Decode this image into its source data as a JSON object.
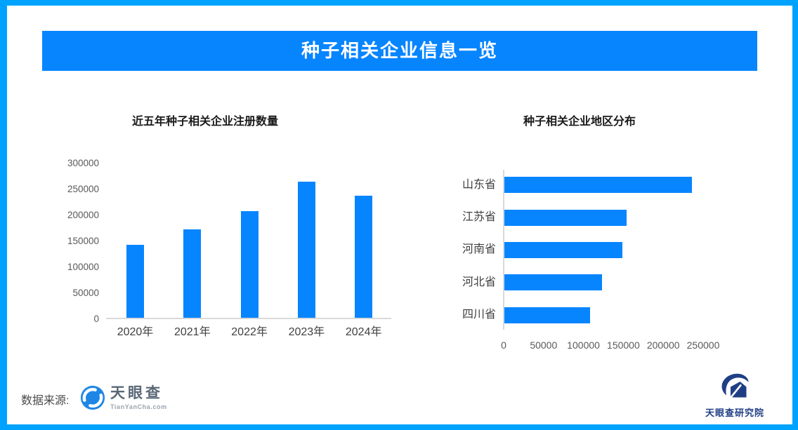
{
  "banner": {
    "title": "种子相关企业信息一览"
  },
  "colors": {
    "brand_blue": "#0685FF",
    "frame_border": "#00A2FF",
    "axis_line": "#D9D9D9",
    "tick_text": "#595959",
    "tianyancha_blue": "#1E87E5",
    "research_navy": "#1F3F85"
  },
  "chart_data": [
    {
      "type": "bar",
      "orientation": "vertical",
      "title": "近五年种子相关企业注册数量",
      "categories": [
        "2020年",
        "2021年",
        "2022年",
        "2023年",
        "2024年"
      ],
      "values": [
        140000,
        170000,
        205000,
        262000,
        235000
      ],
      "xlabel": "",
      "ylabel": "",
      "ylim": [
        0,
        300000
      ],
      "yticks": [
        0,
        50000,
        100000,
        150000,
        200000,
        250000,
        300000
      ],
      "grid": false,
      "legend": false,
      "bar_color": "#0685FF"
    },
    {
      "type": "bar",
      "orientation": "horizontal",
      "title": "种子相关企业地区分布",
      "categories": [
        "山东省",
        "江苏省",
        "河南省",
        "河北省",
        "四川省"
      ],
      "values": [
        235000,
        153000,
        148000,
        122000,
        107000
      ],
      "xlabel": "",
      "ylabel": "",
      "xlim": [
        0,
        250000
      ],
      "xticks": [
        0,
        50000,
        100000,
        150000,
        200000,
        250000
      ],
      "grid": false,
      "legend": false,
      "bar_color": "#0685FF"
    }
  ],
  "footer": {
    "source_label": "数据来源:",
    "tianyancha": {
      "name": "天眼查",
      "subtext": "TianYanCha.com"
    },
    "research": {
      "name": "天眼查研究院"
    }
  }
}
